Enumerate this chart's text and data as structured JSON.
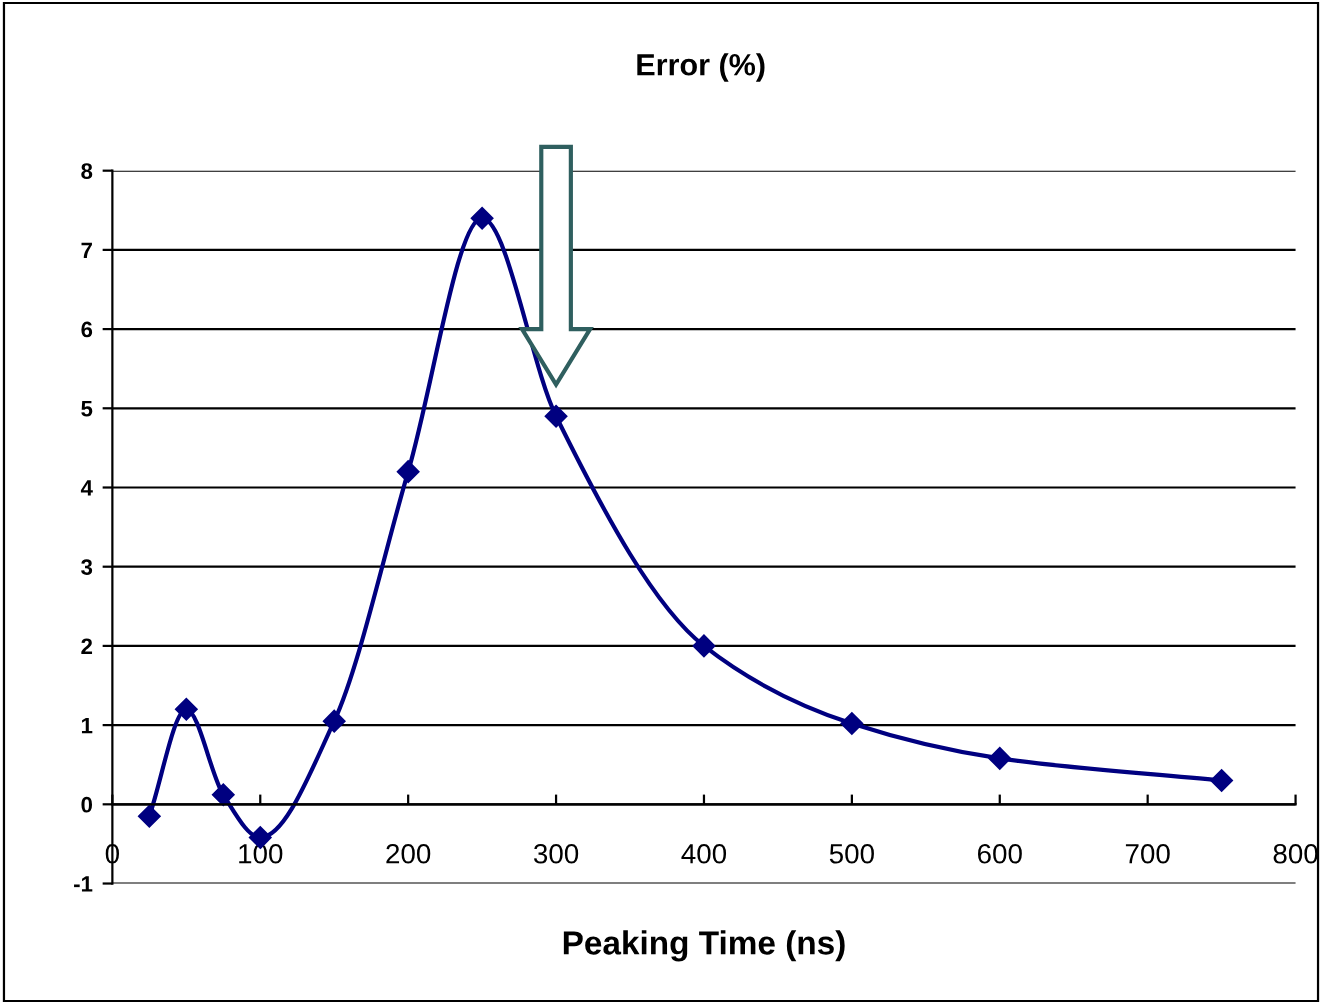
{
  "chart_data": {
    "type": "line",
    "title": "Error (%)",
    "xlabel": "Peaking Time (ns)",
    "x": [
      25,
      50,
      75,
      100,
      150,
      200,
      250,
      300,
      400,
      500,
      600,
      750
    ],
    "series": [
      {
        "color": "#000080",
        "values": [
          -0.15,
          1.2,
          0.12,
          -0.42,
          1.05,
          4.2,
          7.4,
          4.9,
          2.0,
          1.02,
          0.58,
          0.3
        ]
      }
    ],
    "xlim": [
      0,
      800
    ],
    "xticks": [
      0,
      100,
      200,
      300,
      400,
      500,
      600,
      700,
      800
    ],
    "ylim": [
      -1,
      8
    ],
    "yticks": [
      -1,
      0,
      1,
      2,
      3,
      4,
      5,
      6,
      7,
      8
    ],
    "grid": "y",
    "marker": "diamond",
    "line_style": "solid",
    "legend": false
  }
}
